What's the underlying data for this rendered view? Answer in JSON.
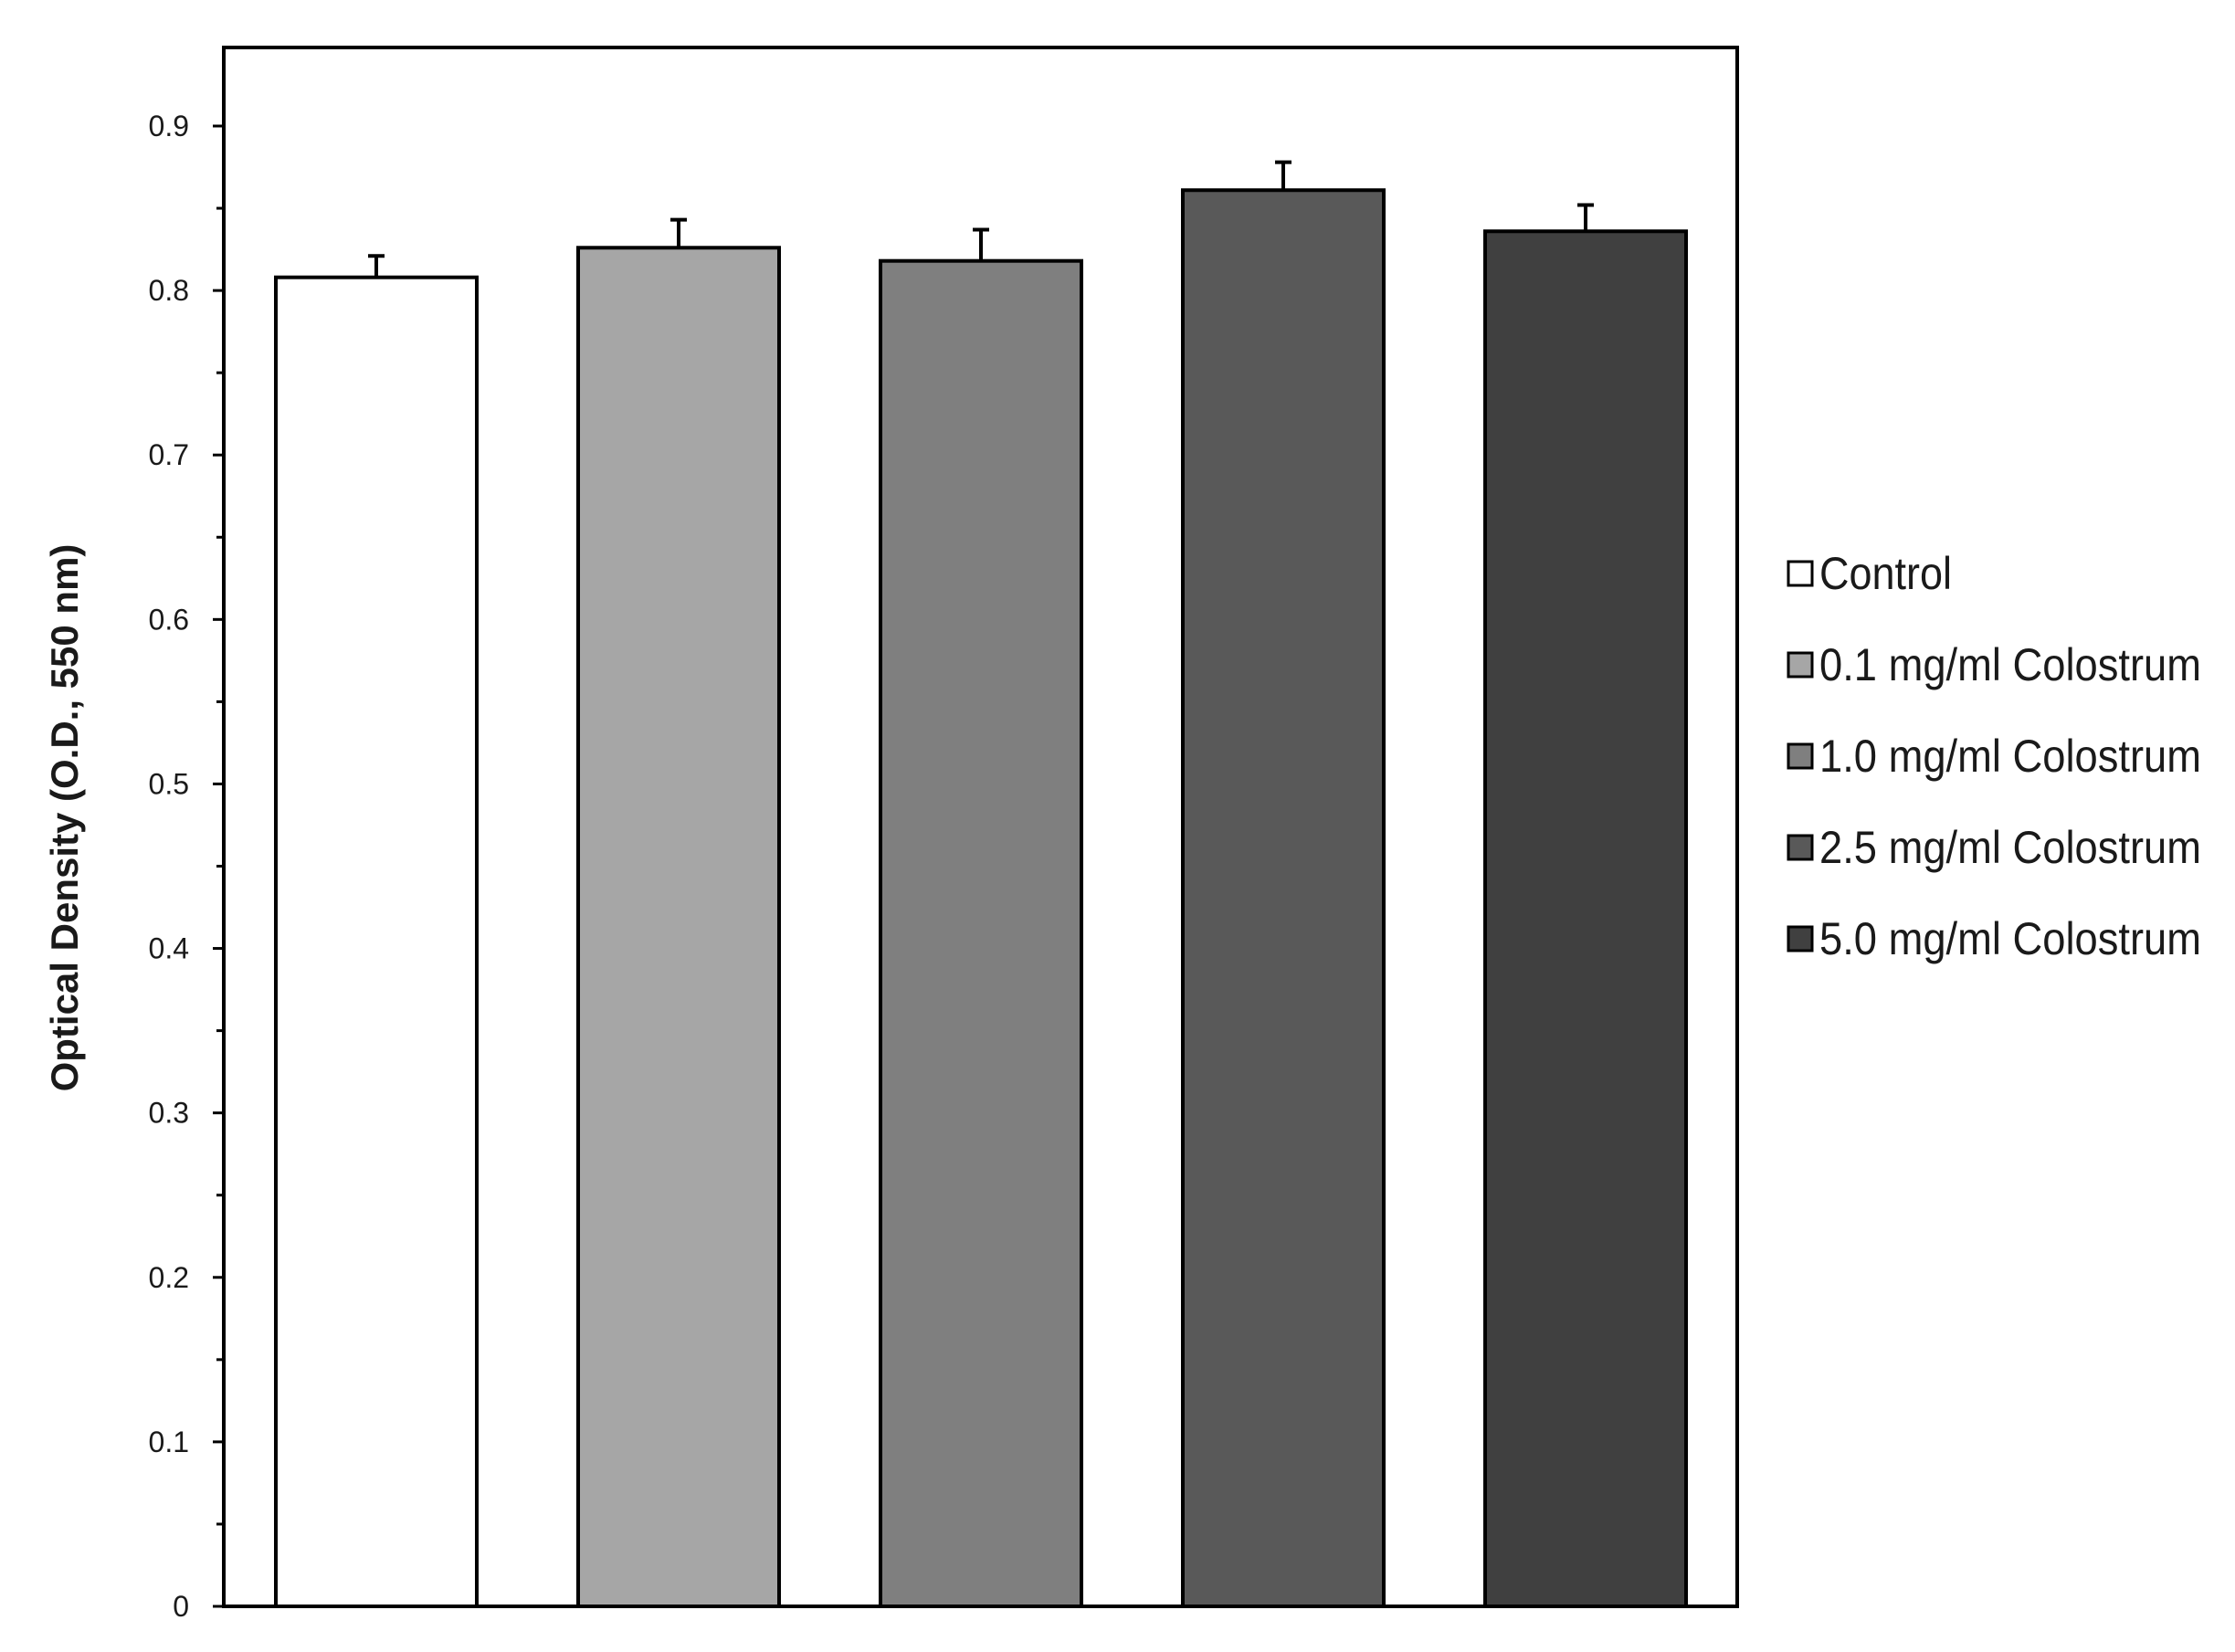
{
  "chart_data": {
    "type": "bar",
    "title": "",
    "xlabel": "",
    "ylabel": "Optical Density (O.D., 550 nm)",
    "ylim": [
      0,
      0.95
    ],
    "yticks": [
      0,
      0.1,
      0.2,
      0.3,
      0.4,
      0.5,
      0.6,
      0.7,
      0.8,
      0.9
    ],
    "ytick_labels": [
      "0",
      "0.1",
      "0.2",
      "0.3",
      "0.4",
      "0.5",
      "0.6",
      "0.7",
      "0.8",
      "0.9"
    ],
    "grid": false,
    "legend_position": "right",
    "series": [
      {
        "name": "Control",
        "value": 0.808,
        "error": 0.013,
        "color": "#ffffff"
      },
      {
        "name": "0.1 mg/ml Colostrum",
        "value": 0.826,
        "error": 0.017,
        "color": "#a6a6a6"
      },
      {
        "name": "1.0 mg/ml Colostrum",
        "value": 0.818,
        "error": 0.019,
        "color": "#7f7f7f"
      },
      {
        "name": "2.5 mg/ml Colostrum",
        "value": 0.861,
        "error": 0.017,
        "color": "#595959"
      },
      {
        "name": "5.0 mg/ml Colostrum",
        "value": 0.836,
        "error": 0.016,
        "color": "#404040"
      }
    ]
  }
}
